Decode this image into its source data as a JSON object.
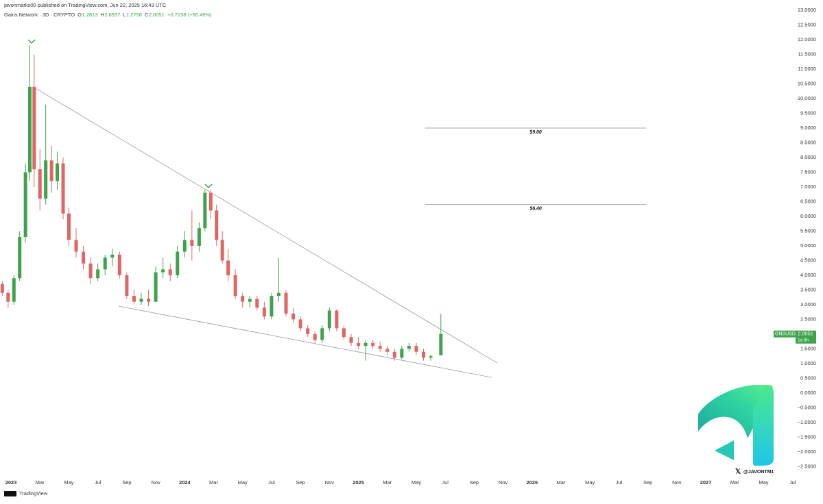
{
  "chart_data": {
    "type": "candlestick",
    "publisher": "javonmarks00 published on TradingView.com, Jun 22, 2025 16:43 UTC",
    "title": "Gains Network · 3D · CRYPTO",
    "ohlc_legend": [
      {
        "label": "O",
        "value": "1.2813"
      },
      {
        "label": "H",
        "value": "2.6937"
      },
      {
        "label": "L",
        "value": "1.2756"
      },
      {
        "label": "C",
        "value": "2.0051"
      },
      {
        "label": "",
        "value": "+0.7238 (+56.49%)"
      }
    ],
    "up_color": "#3fa34d",
    "down_color": "#e06666",
    "x": [
      -0.6,
      -0.2,
      0.2,
      0.6,
      1.0,
      1.3,
      1.6,
      2.0,
      2.4,
      2.8,
      3.2,
      3.6,
      4.0,
      4.5,
      5.0,
      5.5,
      6.0,
      6.5,
      7.0,
      7.5,
      8.0,
      8.5,
      9.0,
      9.5,
      10.0,
      10.5,
      11.0,
      11.5,
      12.0,
      12.5,
      13.0,
      13.4,
      13.8,
      14.2,
      14.6,
      15.0,
      15.5,
      16.0,
      16.5,
      17.0,
      17.5,
      18.0,
      18.5,
      19.0,
      19.5,
      20.0,
      20.5,
      21.0,
      21.5,
      22.0,
      22.5,
      23.0,
      23.5,
      24.0,
      24.5,
      25.0,
      25.5,
      26.0,
      26.5,
      27.0,
      27.5,
      28.0,
      28.5,
      29.0,
      29.7
    ],
    "open": [
      3.7,
      3.4,
      3.1,
      3.9,
      5.3,
      7.5,
      10.4,
      7.6,
      6.6,
      7.9,
      7.2,
      7.8,
      6.1,
      5.2,
      4.8,
      4.4,
      3.9,
      4.2,
      4.6,
      4.7,
      4.0,
      3.3,
      3.1,
      3.2,
      3.1,
      4.1,
      4.2,
      4.0,
      4.8,
      5.2,
      5.0,
      5.6,
      6.8,
      6.2,
      5.2,
      4.5,
      4.0,
      3.3,
      3.1,
      3.2,
      2.9,
      2.6,
      3.3,
      3.4,
      2.7,
      2.5,
      2.2,
      2.0,
      1.8,
      2.2,
      2.8,
      2.2,
      1.9,
      1.7,
      1.6,
      1.7,
      1.6,
      1.5,
      1.4,
      1.2,
      1.5,
      1.6,
      1.4,
      1.2,
      1.2813
    ],
    "high": [
      3.8,
      3.5,
      4.0,
      5.5,
      7.8,
      11.8,
      11.5,
      8.3,
      9.8,
      8.4,
      8.2,
      8.0,
      6.3,
      5.6,
      5.0,
      4.6,
      4.4,
      4.7,
      4.9,
      4.8,
      4.1,
      3.5,
      3.4,
      3.5,
      4.3,
      4.6,
      4.4,
      5.0,
      5.5,
      6.2,
      5.8,
      6.9,
      6.9,
      6.4,
      5.5,
      4.9,
      4.2,
      3.4,
      3.3,
      3.3,
      3.1,
      3.4,
      4.6,
      3.5,
      2.9,
      2.6,
      2.3,
      2.1,
      2.3,
      2.9,
      2.85,
      2.3,
      2.0,
      1.9,
      1.8,
      1.8,
      1.75,
      1.6,
      1.5,
      1.6,
      1.7,
      1.7,
      1.5,
      1.3,
      2.6937
    ],
    "low": [
      3.3,
      2.9,
      3.0,
      3.8,
      5.1,
      7.2,
      7.0,
      6.2,
      6.4,
      6.8,
      6.9,
      5.9,
      5.0,
      4.6,
      4.2,
      3.7,
      3.8,
      4.0,
      4.3,
      3.9,
      3.2,
      3.0,
      3.0,
      2.95,
      3.1,
      3.9,
      3.8,
      3.9,
      4.6,
      4.5,
      4.8,
      5.5,
      5.9,
      5.0,
      4.4,
      3.8,
      3.2,
      2.9,
      2.9,
      2.8,
      2.5,
      2.5,
      3.1,
      2.6,
      2.4,
      2.1,
      1.9,
      1.7,
      1.7,
      2.1,
      2.1,
      1.8,
      1.6,
      1.5,
      1.1,
      1.5,
      1.4,
      1.3,
      1.1,
      1.15,
      1.4,
      1.3,
      1.1,
      1.1,
      1.2756
    ],
    "close": [
      3.4,
      3.1,
      3.9,
      5.3,
      7.5,
      10.4,
      7.6,
      6.6,
      7.9,
      7.2,
      7.8,
      6.1,
      5.2,
      4.8,
      4.4,
      3.9,
      4.2,
      4.6,
      4.7,
      4.0,
      3.3,
      3.1,
      3.2,
      3.1,
      4.1,
      4.2,
      4.0,
      4.8,
      5.2,
      5.0,
      5.6,
      6.8,
      6.2,
      5.2,
      4.5,
      4.0,
      3.3,
      3.1,
      3.2,
      2.9,
      2.6,
      3.3,
      3.4,
      2.7,
      2.5,
      2.2,
      2.0,
      1.8,
      2.2,
      2.8,
      2.2,
      1.9,
      1.7,
      1.6,
      1.7,
      1.6,
      1.5,
      1.4,
      1.2,
      1.5,
      1.6,
      1.4,
      1.2,
      1.25,
      2.0051
    ],
    "xlim": [
      -0.76,
      56.1
    ],
    "xticks": [
      {
        "value": 0,
        "label": "2023"
      },
      {
        "value": 2,
        "label": "Mar"
      },
      {
        "value": 4,
        "label": "May"
      },
      {
        "value": 6,
        "label": "Jul"
      },
      {
        "value": 8,
        "label": "Sep"
      },
      {
        "value": 10,
        "label": "Nov"
      },
      {
        "value": 12,
        "label": "2024"
      },
      {
        "value": 14,
        "label": "Mar"
      },
      {
        "value": 16,
        "label": "May"
      },
      {
        "value": 18,
        "label": "Jul"
      },
      {
        "value": 20,
        "label": "Sep"
      },
      {
        "value": 22,
        "label": "Nov"
      },
      {
        "value": 24,
        "label": "2025"
      },
      {
        "value": 26,
        "label": "Mar"
      },
      {
        "value": 28,
        "label": "May"
      },
      {
        "value": 30,
        "label": "Jul"
      },
      {
        "value": 32,
        "label": "Sep"
      },
      {
        "value": 34,
        "label": "Nov"
      },
      {
        "value": 36,
        "label": "2026"
      },
      {
        "value": 38,
        "label": "Mar"
      },
      {
        "value": 40,
        "label": "May"
      },
      {
        "value": 42,
        "label": "Jul"
      },
      {
        "value": 44,
        "label": "Sep"
      },
      {
        "value": 46,
        "label": "Nov"
      },
      {
        "value": 48,
        "label": "2027"
      },
      {
        "value": 50,
        "label": "Mar"
      },
      {
        "value": 52,
        "label": "May"
      },
      {
        "value": 54,
        "label": "Jul"
      }
    ],
    "ylim": [
      -2.7,
      13.35
    ],
    "yticks": [
      {
        "value": 13,
        "label": "13.0000"
      },
      {
        "value": 12.5,
        "label": "12.5000"
      },
      {
        "value": 12,
        "label": "12.0000"
      },
      {
        "value": 11.5,
        "label": "11.5000"
      },
      {
        "value": 11,
        "label": "11.0000"
      },
      {
        "value": 10.5,
        "label": "10.5000"
      },
      {
        "value": 10,
        "label": "10.0000"
      },
      {
        "value": 9.5,
        "label": "9.5000"
      },
      {
        "value": 9,
        "label": "9.0000"
      },
      {
        "value": 8.5,
        "label": "8.5000"
      },
      {
        "value": 8,
        "label": "8.0000"
      },
      {
        "value": 7.5,
        "label": "7.5000"
      },
      {
        "value": 7,
        "label": "7.0000"
      },
      {
        "value": 6.5,
        "label": "6.5000"
      },
      {
        "value": 6,
        "label": "6.0000"
      },
      {
        "value": 5.5,
        "label": "5.5000"
      },
      {
        "value": 5,
        "label": "5.0000"
      },
      {
        "value": 4.5,
        "label": "4.5000"
      },
      {
        "value": 4,
        "label": "4.0000"
      },
      {
        "value": 3.5,
        "label": "3.5000"
      },
      {
        "value": 3,
        "label": "3.0000"
      },
      {
        "value": 2.5,
        "label": "2.5000"
      },
      {
        "value": 2,
        "label": "2.0000"
      },
      {
        "value": 1.5,
        "label": "1.5000"
      },
      {
        "value": 1,
        "label": "1.0000"
      },
      {
        "value": 0.5,
        "label": "0.5000"
      },
      {
        "value": 0,
        "label": "0.0000"
      },
      {
        "value": -0.5,
        "label": "−0.5000"
      },
      {
        "value": -1,
        "label": "−1.0000"
      },
      {
        "value": -1.5,
        "label": "−1.5000"
      },
      {
        "value": -2,
        "label": "−2.0000"
      },
      {
        "value": -2.5,
        "label": "−2.5000"
      }
    ],
    "trendlines": [
      {
        "x": [
          1.52,
          33.6
        ],
        "y": [
          10.4,
          1.02
        ]
      },
      {
        "x": [
          7.44,
          33.2
        ],
        "y": [
          2.95,
          0.53
        ]
      }
    ],
    "levels": [
      {
        "value": 9,
        "label": "$9.00",
        "x": [
          28.6,
          43.9
        ]
      },
      {
        "value": 6.4,
        "label": "$6.40",
        "x": [
          28.6,
          43.9
        ]
      }
    ],
    "last_price": {
      "symbol": "GNSUSD",
      "value": 2.0051,
      "countdown": "1d 8h"
    },
    "watermark": "@JAVONTM1",
    "brand": "TradingView"
  }
}
